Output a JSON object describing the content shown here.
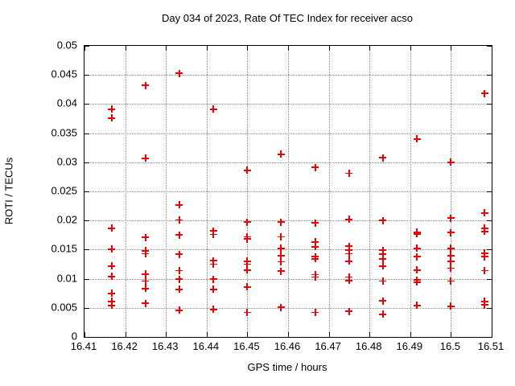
{
  "title": "Day 034 of 2023, Rate Of TEC Index for receiver acso",
  "chart_data": {
    "type": "scatter",
    "title": "Day 034 of 2023, Rate Of TEC Index for receiver acso",
    "xlabel": "GPS time / hours",
    "ylabel": "ROTI / TECUs",
    "xlim": [
      16.41,
      16.51
    ],
    "ylim": [
      0,
      0.05
    ],
    "x_ticks": [
      16.41,
      16.42,
      16.43,
      16.44,
      16.45,
      16.46,
      16.47,
      16.48,
      16.49,
      16.5,
      16.51
    ],
    "x_tick_labels": [
      "16.41",
      "16.42",
      "16.43",
      "16.44",
      "16.45",
      "16.46",
      "16.47",
      "16.48",
      "16.49",
      "16.5",
      "16.51"
    ],
    "y_ticks": [
      0,
      0.005,
      0.01,
      0.015,
      0.02,
      0.025,
      0.03,
      0.035,
      0.04,
      0.045,
      0.05
    ],
    "y_tick_labels": [
      "0",
      "0.005",
      "0.01",
      "0.015",
      "0.02",
      "0.025",
      "0.03",
      "0.035",
      "0.04",
      "0.045",
      "0.05"
    ],
    "grid": true,
    "legend": "none",
    "marker": "plus",
    "marker_color": "#ee0000",
    "points": [
      [
        16.4167,
        0.0391
      ],
      [
        16.4167,
        0.0376
      ],
      [
        16.4167,
        0.0187
      ],
      [
        16.4167,
        0.0151
      ],
      [
        16.4167,
        0.0122
      ],
      [
        16.4167,
        0.0104
      ],
      [
        16.4167,
        0.0075
      ],
      [
        16.4167,
        0.0061
      ],
      [
        16.4167,
        0.0054
      ],
      [
        16.425,
        0.0432
      ],
      [
        16.425,
        0.0307
      ],
      [
        16.425,
        0.0171
      ],
      [
        16.425,
        0.0148
      ],
      [
        16.425,
        0.0143
      ],
      [
        16.425,
        0.0108
      ],
      [
        16.425,
        0.0096
      ],
      [
        16.425,
        0.0083
      ],
      [
        16.425,
        0.0058
      ],
      [
        16.4333,
        0.0453
      ],
      [
        16.4333,
        0.0227
      ],
      [
        16.4333,
        0.0201
      ],
      [
        16.4333,
        0.0175
      ],
      [
        16.4333,
        0.0142
      ],
      [
        16.4333,
        0.0114
      ],
      [
        16.4333,
        0.0099
      ],
      [
        16.4333,
        0.0082
      ],
      [
        16.4333,
        0.0046
      ],
      [
        16.4417,
        0.0391
      ],
      [
        16.4417,
        0.0182
      ],
      [
        16.4417,
        0.0176
      ],
      [
        16.4417,
        0.0131
      ],
      [
        16.4417,
        0.0125
      ],
      [
        16.4417,
        0.0099
      ],
      [
        16.4417,
        0.0082
      ],
      [
        16.4417,
        0.0047
      ],
      [
        16.45,
        0.0286
      ],
      [
        16.45,
        0.0197
      ],
      [
        16.45,
        0.0172
      ],
      [
        16.45,
        0.0168
      ],
      [
        16.45,
        0.013
      ],
      [
        16.45,
        0.0125
      ],
      [
        16.45,
        0.0115
      ],
      [
        16.45,
        0.0086
      ],
      [
        16.45,
        0.0042
      ],
      [
        16.4583,
        0.0314
      ],
      [
        16.4583,
        0.0197
      ],
      [
        16.4583,
        0.0172
      ],
      [
        16.4583,
        0.0152
      ],
      [
        16.4583,
        0.014
      ],
      [
        16.4583,
        0.0129
      ],
      [
        16.4583,
        0.0113
      ],
      [
        16.4583,
        0.0051
      ],
      [
        16.4667,
        0.0291
      ],
      [
        16.4667,
        0.0196
      ],
      [
        16.4667,
        0.0163
      ],
      [
        16.4667,
        0.0155
      ],
      [
        16.4667,
        0.0138
      ],
      [
        16.4667,
        0.0134
      ],
      [
        16.4667,
        0.0107
      ],
      [
        16.4667,
        0.0103
      ],
      [
        16.4667,
        0.0042
      ],
      [
        16.475,
        0.0281
      ],
      [
        16.475,
        0.0202
      ],
      [
        16.475,
        0.0156
      ],
      [
        16.475,
        0.0149
      ],
      [
        16.475,
        0.0143
      ],
      [
        16.475,
        0.013
      ],
      [
        16.475,
        0.0103
      ],
      [
        16.475,
        0.0097
      ],
      [
        16.475,
        0.0044
      ],
      [
        16.4833,
        0.0308
      ],
      [
        16.4833,
        0.02
      ],
      [
        16.4833,
        0.0149
      ],
      [
        16.4833,
        0.0142
      ],
      [
        16.4833,
        0.0134
      ],
      [
        16.4833,
        0.0122
      ],
      [
        16.4833,
        0.0096
      ],
      [
        16.4833,
        0.0062
      ],
      [
        16.4833,
        0.0039
      ],
      [
        16.4917,
        0.034
      ],
      [
        16.4917,
        0.018
      ],
      [
        16.4917,
        0.0177
      ],
      [
        16.4917,
        0.0152
      ],
      [
        16.4917,
        0.0138
      ],
      [
        16.4917,
        0.0115
      ],
      [
        16.4917,
        0.0098
      ],
      [
        16.4917,
        0.0094
      ],
      [
        16.4917,
        0.0054
      ],
      [
        16.5,
        0.03
      ],
      [
        16.5,
        0.0204
      ],
      [
        16.5,
        0.0179
      ],
      [
        16.5,
        0.0152
      ],
      [
        16.5,
        0.014
      ],
      [
        16.5,
        0.013
      ],
      [
        16.5,
        0.0118
      ],
      [
        16.5,
        0.0096
      ],
      [
        16.5,
        0.0053
      ],
      [
        16.5083,
        0.0418
      ],
      [
        16.5083,
        0.0213
      ],
      [
        16.5083,
        0.0187
      ],
      [
        16.5083,
        0.0181
      ],
      [
        16.5083,
        0.0144
      ],
      [
        16.5083,
        0.0138
      ],
      [
        16.5083,
        0.0114
      ],
      [
        16.5083,
        0.0061
      ],
      [
        16.5083,
        0.0055
      ]
    ]
  }
}
